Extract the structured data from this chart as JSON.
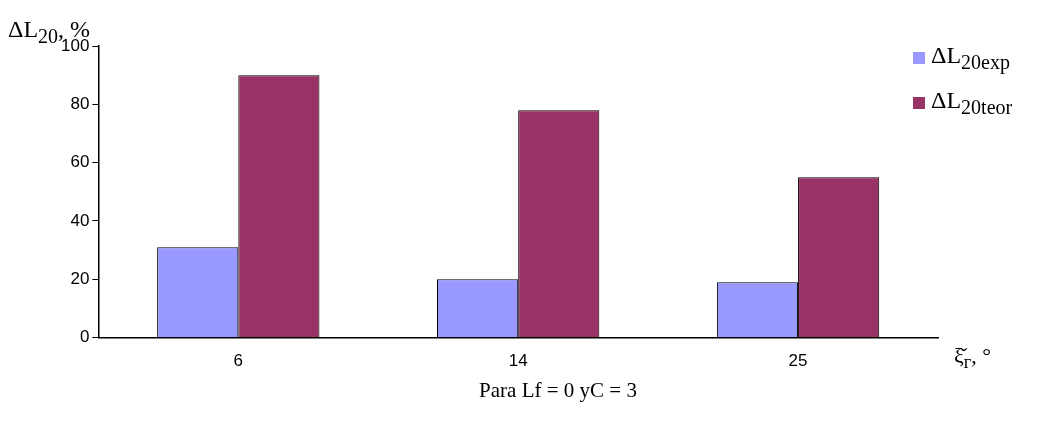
{
  "chart_data": {
    "type": "bar",
    "categories": [
      "6",
      "14",
      "25"
    ],
    "series": [
      {
        "name": "ΔL$_{20exp}$",
        "color": "#9999ff",
        "values": [
          31,
          20,
          19
        ]
      },
      {
        "name": "ΔL$_{20teor}$",
        "color": "#993366",
        "values": [
          90,
          78,
          55
        ]
      }
    ],
    "ylim": [
      0,
      100
    ],
    "yticks": [
      0,
      20,
      40,
      60,
      80,
      100
    ],
    "grid": false,
    "legend": "top right",
    "xlabel": "ξ̌$_{г}$, °",
    "ylabel": "ΔL$_{20}$, %",
    "annotations": [
      "Para Lf = 0 yC = 3"
    ]
  }
}
